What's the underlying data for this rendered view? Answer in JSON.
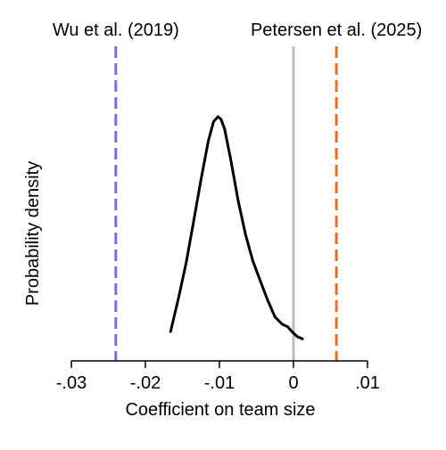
{
  "chart_data": {
    "type": "line",
    "xlabel": "Coefficient on team size",
    "ylabel": "Probability density",
    "xlim": [
      -0.03,
      0.01
    ],
    "ylim": [
      0,
      1.0
    ],
    "grid": false,
    "x_ticks": [
      -0.03,
      -0.02,
      -0.01,
      0,
      0.01
    ],
    "x_tick_labels": [
      "-.03",
      "-.02",
      "-.01",
      "0",
      ".01"
    ],
    "series": [
      {
        "color": "#000000",
        "x": [
          -0.0166,
          -0.0155,
          -0.0145,
          -0.0135,
          -0.0125,
          -0.0115,
          -0.0108,
          -0.0102,
          -0.0098,
          -0.0093,
          -0.0085,
          -0.0075,
          -0.0065,
          -0.0055,
          -0.0045,
          -0.0035,
          -0.0025,
          -0.0015,
          -0.0008,
          -0.0002,
          0.0005,
          0.0012
        ],
        "y": [
          0.12,
          0.26,
          0.4,
          0.57,
          0.74,
          0.9,
          0.98,
          1.0,
          0.99,
          0.95,
          0.83,
          0.66,
          0.52,
          0.41,
          0.33,
          0.25,
          0.18,
          0.15,
          0.14,
          0.12,
          0.1,
          0.09
        ]
      }
    ],
    "reference_lines": [
      {
        "x": -0.024,
        "label": "Wu et al. (2019)",
        "color": "#7B68EE",
        "style": "dashed"
      },
      {
        "x": 0,
        "label": "",
        "color": "#bdbdbd",
        "style": "solid"
      },
      {
        "x": 0.0058,
        "label": "Petersen et al. (2025)",
        "color": "#F26B1D",
        "style": "dashed"
      }
    ]
  }
}
